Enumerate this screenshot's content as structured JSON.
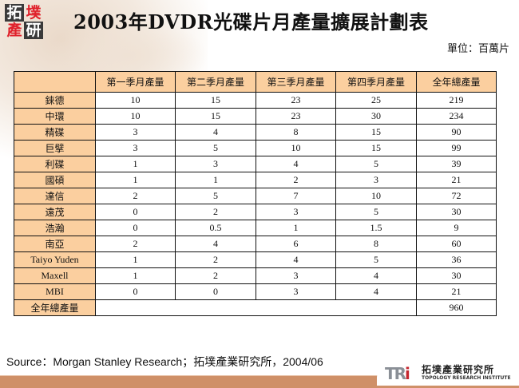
{
  "logo": {
    "chars": [
      "拓",
      "墣",
      "產",
      "研"
    ]
  },
  "header": {
    "title": "2003年DVDR光碟片月產量擴展計劃表",
    "unit": "單位：百萬片"
  },
  "table": {
    "columns": [
      "",
      "第一季月產量",
      "第二季月產量",
      "第三季月產量",
      "第四季月產量",
      "全年總產量"
    ],
    "rows": [
      {
        "name": "錸德",
        "q1": "10",
        "q2": "15",
        "q3": "23",
        "q4": "25",
        "total": "219"
      },
      {
        "name": "中環",
        "q1": "10",
        "q2": "15",
        "q3": "23",
        "q4": "30",
        "total": "234"
      },
      {
        "name": "精碟",
        "q1": "3",
        "q2": "4",
        "q3": "8",
        "q4": "15",
        "total": "90"
      },
      {
        "name": "巨擘",
        "q1": "3",
        "q2": "5",
        "q3": "10",
        "q4": "15",
        "total": "99"
      },
      {
        "name": "利碟",
        "q1": "1",
        "q2": "3",
        "q3": "4",
        "q4": "5",
        "total": "39"
      },
      {
        "name": "國碩",
        "q1": "1",
        "q2": "1",
        "q3": "2",
        "q4": "3",
        "total": "21"
      },
      {
        "name": "達信",
        "q1": "2",
        "q2": "5",
        "q3": "7",
        "q4": "10",
        "total": "72"
      },
      {
        "name": "遠茂",
        "q1": "0",
        "q2": "2",
        "q3": "3",
        "q4": "5",
        "total": "30"
      },
      {
        "name": "浩瀚",
        "q1": "0",
        "q2": "0.5",
        "q3": "1",
        "q4": "1.5",
        "total": "9"
      },
      {
        "name": "南亞",
        "q1": "2",
        "q2": "4",
        "q3": "6",
        "q4": "8",
        "total": "60"
      },
      {
        "name": "Taiyo Yuden",
        "q1": "1",
        "q2": "2",
        "q3": "4",
        "q4": "5",
        "total": "36"
      },
      {
        "name": "Maxell",
        "q1": "1",
        "q2": "2",
        "q3": "3",
        "q4": "4",
        "total": "30"
      },
      {
        "name": "MBI",
        "q1": "0",
        "q2": "0",
        "q3": "3",
        "q4": "4",
        "total": "21"
      }
    ],
    "total_row": {
      "name": "全年總產量",
      "total": "960"
    }
  },
  "footer": {
    "source": "Source：Morgan Stanley Research；拓墣產業研究所，2004/06",
    "brand_mark": "TRi",
    "brand_cn": "拓墣產業研究所",
    "brand_en": "TOPOLOGY RESEARCH INSTITUTE"
  }
}
